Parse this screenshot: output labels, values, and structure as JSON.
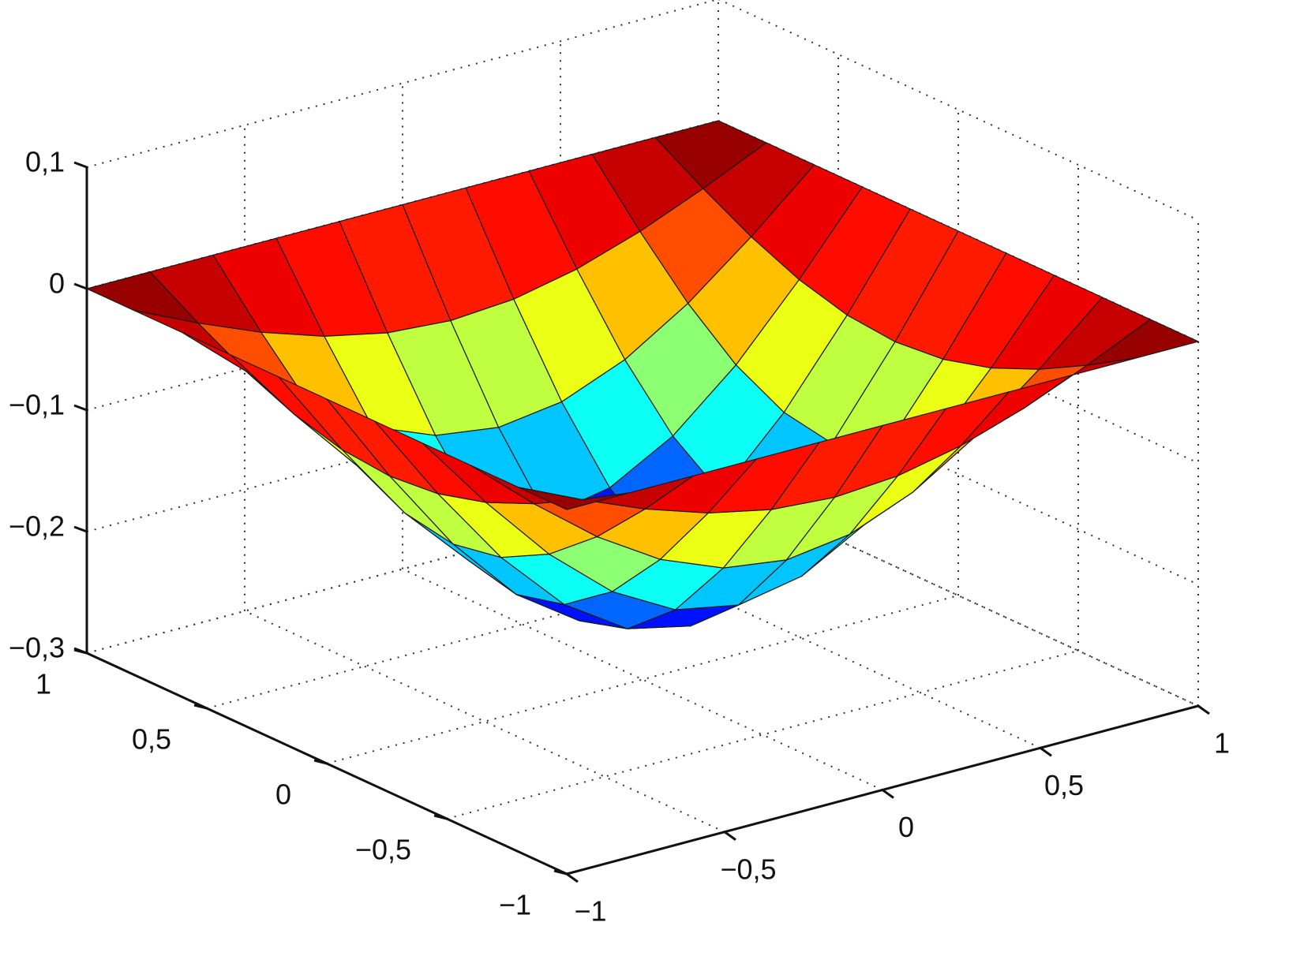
{
  "chart_data": {
    "type": "surface",
    "colormap": "jet",
    "edge_color": "#1a1a1a",
    "grid": true,
    "x": [
      -1,
      -0.8,
      -0.6,
      -0.4,
      -0.2,
      0,
      0.2,
      0.4,
      0.6,
      0.8,
      1
    ],
    "y": [
      -1,
      -0.8,
      -0.6,
      -0.4,
      -0.2,
      0,
      0.2,
      0.4,
      0.6,
      0.8,
      1
    ],
    "z": [
      [
        0,
        0,
        0,
        0,
        0,
        0,
        0,
        0,
        0,
        0,
        0
      ],
      [
        0,
        -0.0239,
        -0.0454,
        -0.0625,
        -0.0735,
        -0.0773,
        -0.0735,
        -0.0625,
        -0.0454,
        -0.0239,
        0
      ],
      [
        0,
        -0.0454,
        -0.0864,
        -0.1189,
        -0.1398,
        -0.147,
        -0.1398,
        -0.1189,
        -0.0864,
        -0.0454,
        0
      ],
      [
        0,
        -0.0625,
        -0.1189,
        -0.1636,
        -0.1924,
        -0.2023,
        -0.1924,
        -0.1636,
        -0.1189,
        -0.0625,
        0
      ],
      [
        0,
        -0.0735,
        -0.1398,
        -0.1924,
        -0.2262,
        -0.2378,
        -0.2262,
        -0.1924,
        -0.1398,
        -0.0735,
        0
      ],
      [
        0,
        -0.0773,
        -0.147,
        -0.2023,
        -0.2378,
        -0.25,
        -0.2378,
        -0.2023,
        -0.147,
        -0.0773,
        0
      ],
      [
        0,
        -0.0735,
        -0.1398,
        -0.1924,
        -0.2262,
        -0.2378,
        -0.2262,
        -0.1924,
        -0.1398,
        -0.0735,
        0
      ],
      [
        0,
        -0.0625,
        -0.1189,
        -0.1636,
        -0.1924,
        -0.2023,
        -0.1924,
        -0.1636,
        -0.1189,
        -0.0625,
        0
      ],
      [
        0,
        -0.0454,
        -0.0864,
        -0.1189,
        -0.1398,
        -0.147,
        -0.1398,
        -0.1189,
        -0.0864,
        -0.0454,
        0
      ],
      [
        0,
        -0.0239,
        -0.0454,
        -0.0625,
        -0.0735,
        -0.0773,
        -0.0735,
        -0.0625,
        -0.0454,
        -0.0239,
        0
      ],
      [
        0,
        0,
        0,
        0,
        0,
        0,
        0,
        0,
        0,
        0,
        0
      ]
    ],
    "xlim": [
      -1,
      1
    ],
    "ylim": [
      -1,
      1
    ],
    "zlim": [
      -0.3,
      0.1
    ],
    "xticks": [
      {
        "value": -1,
        "label": "−1"
      },
      {
        "value": -0.5,
        "label": "−0,5"
      },
      0,
      {
        "value": 0.5,
        "label": "0,5"
      },
      1
    ],
    "yticks": [
      {
        "value": -1,
        "label": "−1"
      },
      {
        "value": -0.5,
        "label": "−0,5"
      },
      0,
      {
        "value": 0.5,
        "label": "0,5"
      },
      1
    ],
    "zticks": [
      {
        "value": -0.3,
        "label": "−0,3"
      },
      {
        "value": -0.2,
        "label": "−0,2"
      },
      {
        "value": -0.1,
        "label": "−0,1"
      },
      0,
      {
        "value": 0.1,
        "label": "0,1"
      }
    ]
  }
}
